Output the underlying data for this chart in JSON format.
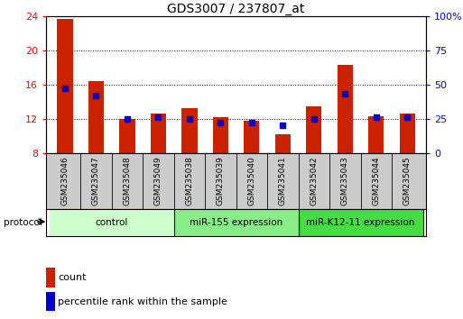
{
  "title": "GDS3007 / 237807_at",
  "samples": [
    "GSM235046",
    "GSM235047",
    "GSM235048",
    "GSM235049",
    "GSM235038",
    "GSM235039",
    "GSM235040",
    "GSM235041",
    "GSM235042",
    "GSM235043",
    "GSM235044",
    "GSM235045"
  ],
  "bar_tops": [
    23.7,
    16.4,
    12.0,
    12.6,
    13.2,
    12.2,
    11.8,
    10.2,
    13.5,
    18.3,
    12.3,
    12.6
  ],
  "percentile_ranks": [
    47,
    42,
    25,
    26,
    25,
    22,
    22,
    20,
    25,
    43,
    26,
    26
  ],
  "ymin": 8,
  "ymax": 24,
  "yticks_left": [
    8,
    12,
    16,
    20,
    24
  ],
  "yticks_right_vals": [
    0,
    25,
    50,
    75,
    100
  ],
  "yticks_right_labels": [
    "0",
    "25",
    "50",
    "75",
    "100%"
  ],
  "bar_color": "#cc2200",
  "dot_color": "#0000cc",
  "groups": [
    {
      "label": "control",
      "start": 0,
      "end": 4,
      "color": "#ccffcc"
    },
    {
      "label": "miR-155 expression",
      "start": 4,
      "end": 8,
      "color": "#88ee88"
    },
    {
      "label": "miR-K12-11 expression",
      "start": 8,
      "end": 12,
      "color": "#44dd44"
    }
  ],
  "protocol_label": "protocol",
  "legend_count_label": "count",
  "legend_pct_label": "percentile rank within the sample",
  "bar_width": 0.5,
  "title_fontsize": 10,
  "tick_fontsize": 8,
  "sample_fontsize": 6.5,
  "group_fontsize": 7.5,
  "legend_fontsize": 8,
  "label_bg_color": "#cccccc",
  "group_border_color": "#000000"
}
